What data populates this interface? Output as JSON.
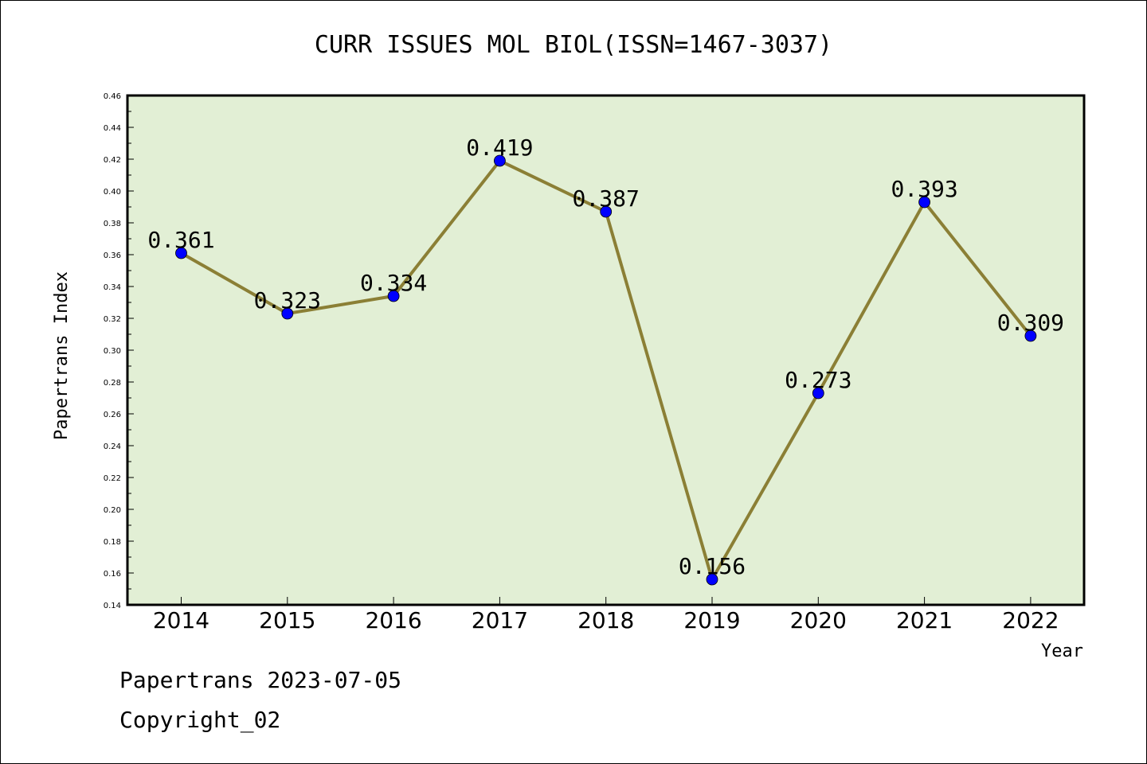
{
  "chart_data": {
    "type": "line",
    "title": "CURR ISSUES MOL BIOL(ISSN=1467-3037)",
    "xlabel": "Year",
    "ylabel": "Papertrans Index",
    "categories": [
      "2014",
      "2015",
      "2016",
      "2017",
      "2018",
      "2019",
      "2020",
      "2021",
      "2022"
    ],
    "values": [
      0.361,
      0.323,
      0.334,
      0.419,
      0.387,
      0.156,
      0.273,
      0.393,
      0.309
    ],
    "data_labels": [
      "0.361",
      "0.323",
      "0.334",
      "0.419",
      "0.387",
      "0.156",
      "0.273",
      "0.393",
      "0.309"
    ],
    "ylim": [
      0.14,
      0.46
    ],
    "yticks": [
      "0.14",
      "0.16",
      "0.18",
      "0.20",
      "0.22",
      "0.24",
      "0.26",
      "0.28",
      "0.30",
      "0.32",
      "0.34",
      "0.36",
      "0.38",
      "0.40",
      "0.42",
      "0.44",
      "0.46"
    ],
    "grid": false,
    "colors": {
      "plot_background": "#e2efd5",
      "line": "#8b7f35",
      "marker": "#0000ff"
    }
  },
  "footer": {
    "line1": "Papertrans 2023-07-05",
    "line2": "Copyright_02"
  }
}
